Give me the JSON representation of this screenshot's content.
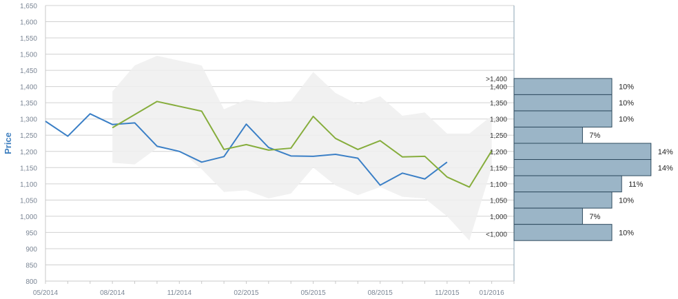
{
  "chart_data": {
    "type": "line",
    "xlabel": "",
    "ylabel": "Price",
    "ylim": [
      800,
      1650
    ],
    "y_ticks": [
      800,
      850,
      900,
      950,
      1000,
      1050,
      1100,
      1150,
      1200,
      1250,
      1300,
      1350,
      1400,
      1450,
      1500,
      1550,
      1600,
      1650
    ],
    "y_tick_labels": [
      "800",
      "850",
      "900",
      "950",
      "1,000",
      "1,050",
      "1,100",
      "1,150",
      "1,200",
      "1,250",
      "1,300",
      "1,350",
      "1,400",
      "1,450",
      "1,500",
      "1,550",
      "1,600",
      "1,650"
    ],
    "x_ticks": [
      "05/2014",
      "08/2014",
      "11/2014",
      "02/2015",
      "05/2015",
      "08/2015",
      "11/2015",
      "01/2016"
    ],
    "grid": true,
    "series": [
      {
        "color": "#3a7fc6",
        "x": [
          "05/2014",
          "06/2014",
          "07/2014",
          "08/2014",
          "09/2014",
          "10/2014",
          "11/2014",
          "12/2014",
          "01/2015",
          "02/2015",
          "03/2015",
          "04/2015",
          "05/2015",
          "06/2015",
          "07/2015",
          "08/2015",
          "09/2015",
          "10/2015",
          "11/2015"
        ],
        "values": [
          1293,
          1247,
          1316,
          1283,
          1288,
          1216,
          1200,
          1167,
          1184,
          1284,
          1212,
          1186,
          1185,
          1191,
          1179,
          1096,
          1133,
          1115,
          1167
        ]
      },
      {
        "color": "#86ad3c",
        "x": [
          "08/2014",
          "10/2014",
          "12/2014",
          "01/2015",
          "02/2015",
          "03/2015",
          "04/2015",
          "05/2015",
          "06/2015",
          "07/2015",
          "08/2015",
          "09/2015",
          "10/2015",
          "11/2015",
          "12/2015",
          "01/2016"
        ],
        "values": [
          1273,
          1354,
          1324,
          1206,
          1221,
          1204,
          1210,
          1308,
          1240,
          1206,
          1233,
          1183,
          1185,
          1121,
          1090,
          1202
        ]
      },
      {
        "type": "area_band",
        "color": "#eeeeee",
        "x": [
          "08/2014",
          "09/2014",
          "10/2014",
          "11/2014",
          "12/2014",
          "01/2015",
          "02/2015",
          "03/2015",
          "04/2015",
          "05/2015",
          "06/2015",
          "07/2015",
          "08/2015",
          "09/2015",
          "10/2015",
          "11/2015",
          "12/2015",
          "01/2016"
        ],
        "upper": [
          1385,
          1465,
          1495,
          1480,
          1465,
          1330,
          1360,
          1350,
          1355,
          1445,
          1380,
          1345,
          1370,
          1310,
          1320,
          1255,
          1255,
          1310
        ],
        "lower": [
          1165,
          1160,
          1210,
          1205,
          1145,
          1075,
          1080,
          1055,
          1070,
          1150,
          1095,
          1065,
          1090,
          1060,
          1055,
          1000,
          925,
          1150
        ]
      }
    ],
    "histogram": {
      "labels": [
        ">1,400",
        "1,400",
        "1,350",
        "1,300",
        "1,250",
        "1,200",
        "1,150",
        "1,100",
        "1,050",
        "1,000",
        "<1,000"
      ],
      "bins": [
        {
          "top": 1425,
          "bottom": 1375,
          "pct": 10
        },
        {
          "top": 1375,
          "bottom": 1325,
          "pct": 10
        },
        {
          "top": 1325,
          "bottom": 1275,
          "pct": 10
        },
        {
          "top": 1275,
          "bottom": 1225,
          "pct": 7
        },
        {
          "top": 1225,
          "bottom": 1175,
          "pct": 14
        },
        {
          "top": 1175,
          "bottom": 1125,
          "pct": 14
        },
        {
          "top": 1125,
          "bottom": 1075,
          "pct": 11
        },
        {
          "top": 1075,
          "bottom": 1025,
          "pct": 10
        },
        {
          "top": 1025,
          "bottom": 975,
          "pct": 7
        },
        {
          "top": 975,
          "bottom": 925,
          "pct": 10
        }
      ],
      "pct_labels": [
        "10%",
        "10%",
        "10%",
        "7%",
        "14%",
        "14%",
        "11%",
        "10%",
        "7%",
        "10%"
      ],
      "color": "#9bb5c7"
    }
  }
}
